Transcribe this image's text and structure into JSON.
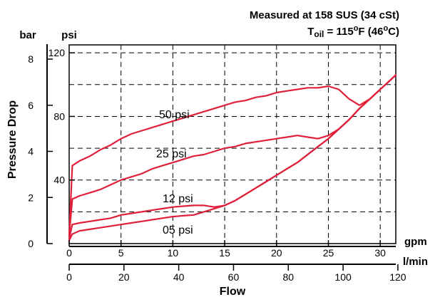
{
  "chart_data": {
    "type": "line",
    "notes": {
      "line1": "Measured at 158 SUS  (34 cSt)",
      "line2_prefix": "T",
      "line2_sub": "oil",
      "line2_eq": " = 115",
      "line2_deg1": "o",
      "line2_f": "F  (46",
      "line2_deg2": "o",
      "line2_c": "C)"
    },
    "xlabel": "Flow",
    "ylabel": "Pressure Drop",
    "x_unit_primary": "gpm",
    "x_unit_secondary": "l/min",
    "y_unit_primary": "psi",
    "y_unit_secondary": "bar",
    "xlim": [
      0,
      31.5
    ],
    "ylim": [
      0,
      125
    ],
    "x_ticks_gpm": [
      "0",
      "5",
      "10",
      "15",
      "20",
      "25",
      "30"
    ],
    "x_ticks_lmin": [
      "0",
      "20",
      "40",
      "60",
      "80",
      "100",
      "120"
    ],
    "y_ticks_psi": [
      "40",
      "80",
      "120"
    ],
    "y_ticks_bar": [
      "0",
      "2",
      "4",
      "6",
      "8"
    ],
    "grid": true,
    "color": "#e0203a",
    "series": [
      {
        "name": "50 psi",
        "x": [
          0,
          0.3,
          1,
          2,
          3,
          4,
          5,
          6,
          7,
          8,
          9,
          10,
          11,
          12,
          13,
          14,
          15,
          16,
          17,
          18,
          19,
          20,
          21,
          22,
          23,
          24,
          25,
          26,
          27,
          28,
          29,
          30,
          31.5
        ],
        "y": [
          5,
          49,
          52,
          55,
          59,
          62,
          66,
          69,
          71,
          73,
          75,
          77,
          79,
          81,
          83,
          85,
          87,
          89,
          90,
          92,
          93,
          95,
          96,
          97,
          98,
          98,
          99,
          97,
          91,
          87,
          91,
          97,
          106
        ]
      },
      {
        "name": "25 psi",
        "x": [
          0,
          0.3,
          1,
          2,
          3,
          4,
          5,
          6,
          7,
          8,
          9,
          10,
          11,
          12,
          13,
          14,
          15,
          16,
          17,
          18,
          19,
          20,
          21,
          22,
          23,
          24,
          25,
          26,
          27,
          28,
          29,
          30,
          31.5
        ],
        "y": [
          5,
          28,
          30,
          32,
          34,
          37,
          40,
          42,
          44,
          47,
          49,
          51,
          53,
          55,
          56,
          58,
          60,
          61,
          63,
          64,
          65,
          66,
          67,
          68,
          67,
          66,
          68,
          72,
          78,
          85,
          91,
          97,
          106
        ]
      },
      {
        "name": "12 psi",
        "x": [
          0,
          0.3,
          1,
          2,
          3,
          4,
          5,
          6,
          7,
          8,
          9,
          10,
          11,
          12,
          13,
          14,
          15,
          16,
          17,
          18,
          19,
          20,
          21,
          22,
          23,
          24,
          25,
          26,
          27,
          28,
          29,
          30,
          31.5
        ],
        "y": [
          3,
          12,
          13,
          14,
          15,
          16,
          18,
          19,
          20,
          21,
          22,
          23,
          23.5,
          24,
          24,
          23,
          24,
          27,
          31,
          35,
          39,
          43,
          47,
          51,
          56,
          61,
          66,
          72,
          78,
          85,
          91,
          97,
          106
        ]
      },
      {
        "name": "05 psi",
        "x": [
          0,
          0.3,
          1,
          2,
          3,
          4,
          5,
          6,
          7,
          8,
          9,
          10,
          11,
          12,
          13,
          14,
          15,
          16,
          17,
          18,
          19,
          20,
          21,
          22,
          23,
          24,
          25,
          26,
          27,
          28,
          29,
          30,
          31.5
        ],
        "y": [
          2,
          6,
          8,
          9,
          10,
          11,
          12,
          13,
          14,
          15,
          16,
          17,
          17.5,
          18,
          20,
          22,
          24,
          27,
          31,
          35,
          39,
          43,
          47,
          51,
          56,
          61,
          66,
          72,
          78,
          85,
          91,
          97,
          106
        ]
      }
    ]
  }
}
